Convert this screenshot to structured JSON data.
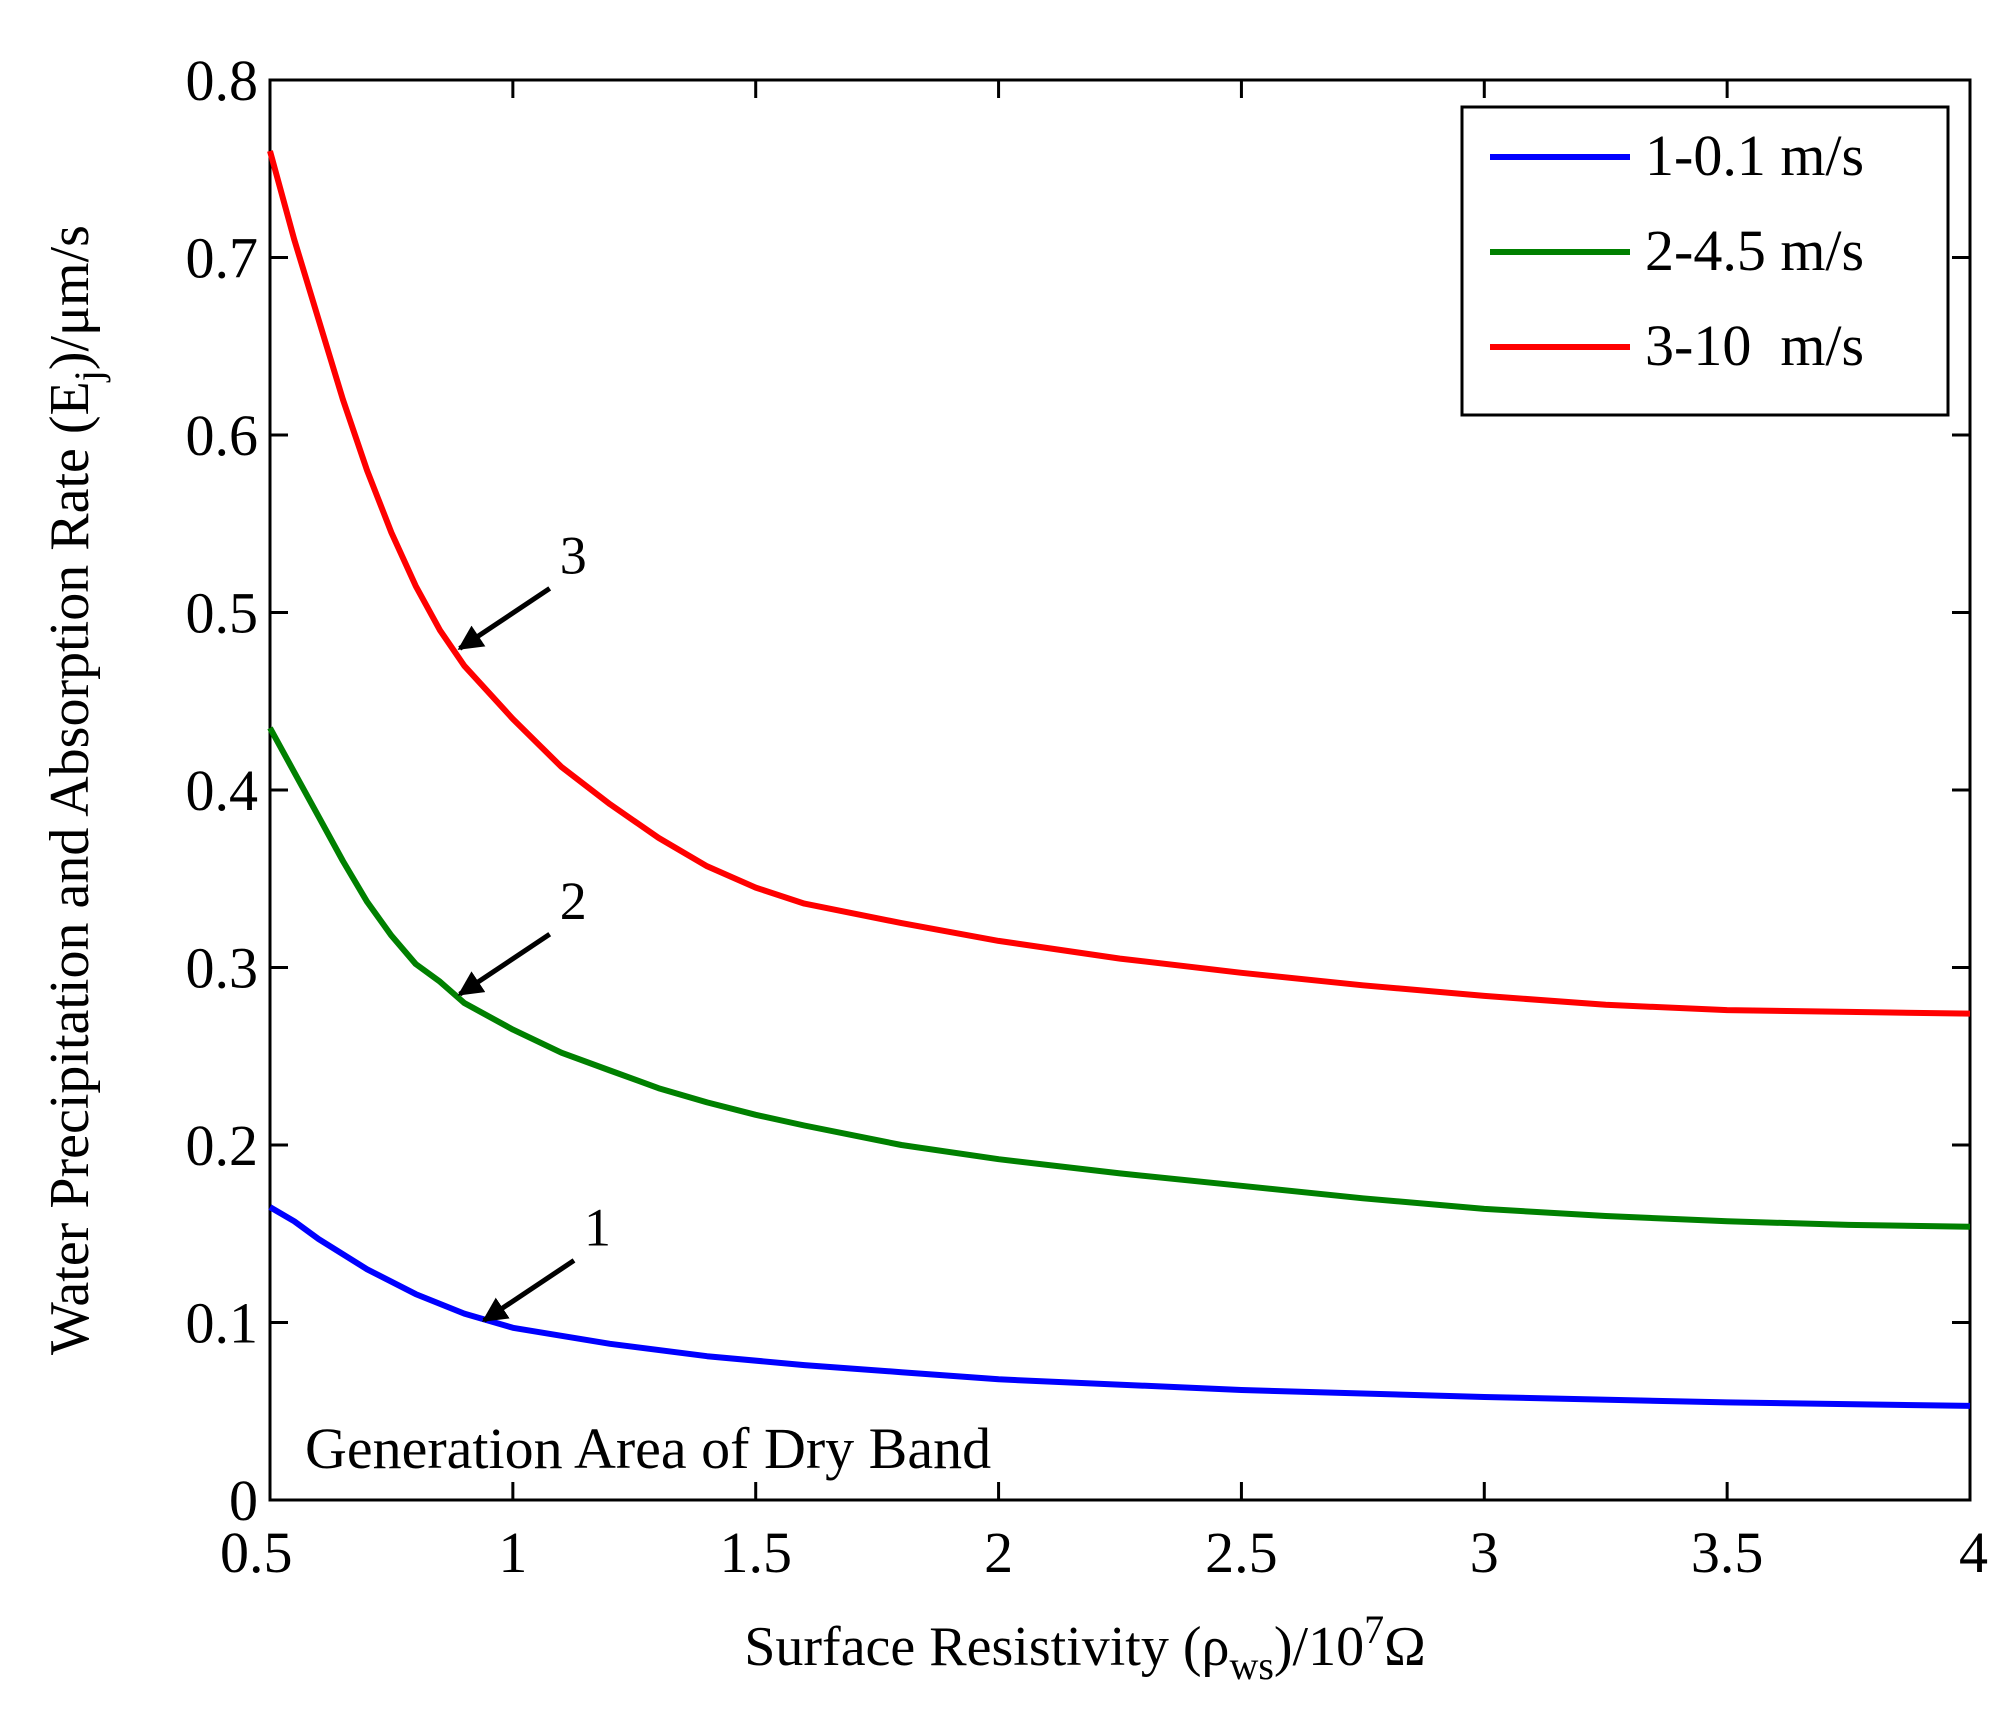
{
  "chart_data": {
    "type": "line",
    "xlabel": {
      "main": "Surface Resistivity (ρ",
      "sub": "ws",
      "tail": ")/10",
      "sup": "7",
      "unit": "Ω"
    },
    "ylabel": {
      "main": "Water Precipitation and Absorption Rate (E",
      "sub": "j",
      "tail": ")/μm/s"
    },
    "xlim": [
      0.5,
      4
    ],
    "ylim": [
      0,
      0.8
    ],
    "xticks": [
      "0.5",
      "1",
      "1.5",
      "2",
      "2.5",
      "3",
      "3.5",
      "4"
    ],
    "yticks": [
      "0",
      "0.1",
      "0.2",
      "0.3",
      "0.4",
      "0.5",
      "0.6",
      "0.7",
      "0.8"
    ],
    "grid": false,
    "legend_position": "top-right",
    "annotation": "Generation Area of Dry Band",
    "series": [
      {
        "name": "1-0.1 m/s",
        "label": "1",
        "color": "#0000ff",
        "x": [
          0.5,
          0.55,
          0.6,
          0.7,
          0.8,
          0.9,
          1.0,
          1.2,
          1.4,
          1.6,
          1.8,
          2.0,
          2.5,
          3.0,
          3.5,
          4.0
        ],
        "y": [
          0.165,
          0.157,
          0.147,
          0.13,
          0.116,
          0.105,
          0.097,
          0.088,
          0.081,
          0.076,
          0.072,
          0.068,
          0.062,
          0.058,
          0.055,
          0.053
        ]
      },
      {
        "name": "2-4.5 m/s",
        "label": "2",
        "color": "#008000",
        "x": [
          0.5,
          0.55,
          0.6,
          0.65,
          0.7,
          0.75,
          0.8,
          0.85,
          0.9,
          1.0,
          1.1,
          1.2,
          1.3,
          1.4,
          1.5,
          1.6,
          1.8,
          2.0,
          2.25,
          2.5,
          2.75,
          3.0,
          3.25,
          3.5,
          3.75,
          4.0
        ],
        "y": [
          0.435,
          0.41,
          0.385,
          0.36,
          0.337,
          0.318,
          0.302,
          0.292,
          0.28,
          0.265,
          0.252,
          0.242,
          0.232,
          0.224,
          0.217,
          0.211,
          0.2,
          0.192,
          0.184,
          0.177,
          0.17,
          0.164,
          0.16,
          0.157,
          0.155,
          0.154
        ]
      },
      {
        "name": "3-10  m/s",
        "label": "3",
        "color": "#ff0000",
        "x": [
          0.5,
          0.55,
          0.6,
          0.65,
          0.7,
          0.75,
          0.8,
          0.85,
          0.9,
          1.0,
          1.1,
          1.2,
          1.3,
          1.4,
          1.5,
          1.6,
          1.8,
          2.0,
          2.25,
          2.5,
          2.75,
          3.0,
          3.25,
          3.5,
          3.75,
          4.0
        ],
        "y": [
          0.76,
          0.71,
          0.665,
          0.62,
          0.58,
          0.545,
          0.515,
          0.49,
          0.47,
          0.44,
          0.413,
          0.392,
          0.373,
          0.357,
          0.345,
          0.336,
          0.325,
          0.315,
          0.305,
          0.297,
          0.29,
          0.284,
          0.279,
          0.276,
          0.275,
          0.274
        ]
      }
    ]
  }
}
